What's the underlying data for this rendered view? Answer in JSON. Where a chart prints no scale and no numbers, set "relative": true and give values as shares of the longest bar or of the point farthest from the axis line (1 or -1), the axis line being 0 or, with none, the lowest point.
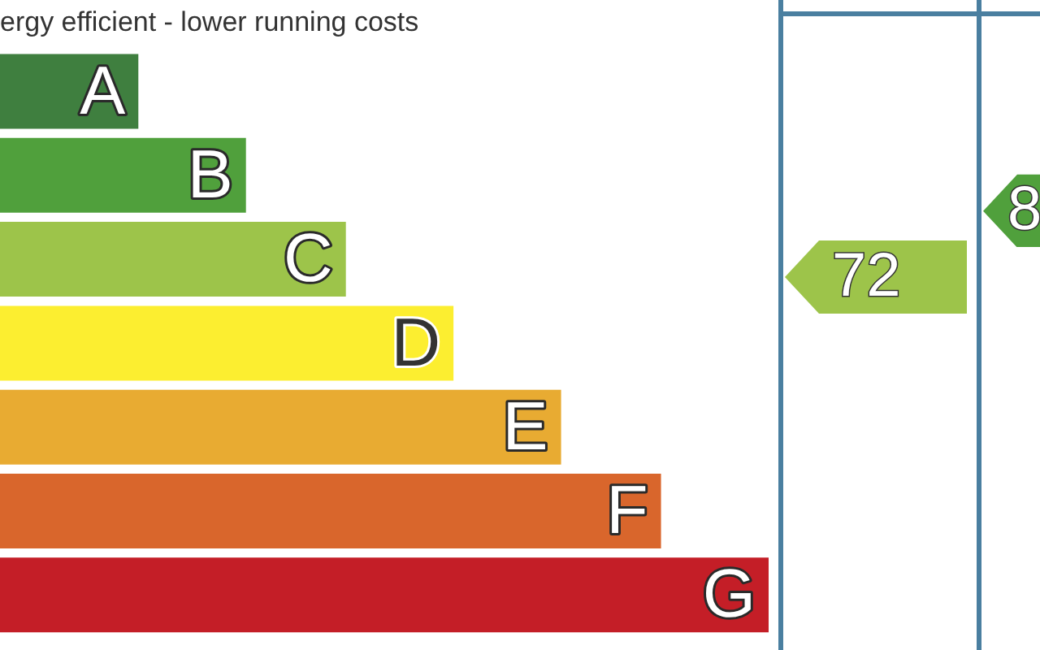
{
  "chart_data": {
    "type": "bar",
    "orientation": "horizontal",
    "relative": true,
    "title": "ergy efficient - lower running costs",
    "categories": [
      "A",
      "B",
      "C",
      "D",
      "E",
      "F",
      "G"
    ],
    "values": [
      0.18,
      0.32,
      0.45,
      0.59,
      0.73,
      0.86,
      1
    ],
    "colors": [
      "#3f7f3f",
      "#50a03c",
      "#9dc44a",
      "#fcee30",
      "#e8ab32",
      "#d9662c",
      "#c41e27"
    ],
    "annotations": [
      "72",
      "8"
    ]
  }
}
